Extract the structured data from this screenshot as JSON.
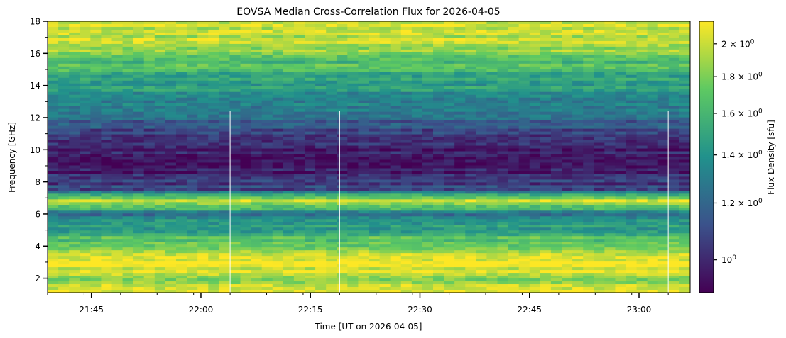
{
  "chart_data": {
    "type": "heatmap",
    "title": "EOVSA Median Cross-Correlation Flux for 2026-04-05",
    "xlabel": "Time [UT on 2026-04-05]",
    "ylabel": "Frequency [GHz]",
    "colorbar_label": "Flux Density [sfu]",
    "colormap": "viridis",
    "colormap_stops": [
      "#440154",
      "#3b528b",
      "#21918c",
      "#5ec962",
      "#fde725"
    ],
    "xlim": [
      "21:39",
      "23:07"
    ],
    "ylim": [
      1.1,
      18.0
    ],
    "x_ticks": [
      "21:45",
      "22:00",
      "22:15",
      "22:30",
      "22:45",
      "23:00"
    ],
    "y_ticks": [
      2,
      4,
      6,
      8,
      10,
      12,
      14,
      16,
      18
    ],
    "color_scale": "log",
    "color_range": [
      0.9,
      2.15
    ],
    "colorbar_ticks": [
      {
        "base": "2",
        "exp": "0",
        "value": 2.0
      },
      {
        "base": "1.8",
        "exp": "0",
        "value": 1.8
      },
      {
        "base": "1.6",
        "exp": "0",
        "value": 1.6
      },
      {
        "base": "1.4",
        "exp": "0",
        "value": 1.4
      },
      {
        "base": "1.2",
        "exp": "0",
        "value": 1.2
      },
      {
        "base": "",
        "exp": "0",
        "value": 1.0
      }
    ],
    "frequency_profile_sfu": [
      {
        "freq_ghz": 1.2,
        "flux": 2.0
      },
      {
        "freq_ghz": 2.0,
        "flux": 1.9
      },
      {
        "freq_ghz": 3.0,
        "flux": 2.1
      },
      {
        "freq_ghz": 4.0,
        "flux": 1.8
      },
      {
        "freq_ghz": 5.0,
        "flux": 1.5
      },
      {
        "freq_ghz": 6.0,
        "flux": 1.25
      },
      {
        "freq_ghz": 6.8,
        "flux": 2.1
      },
      {
        "freq_ghz": 7.5,
        "flux": 1.1
      },
      {
        "freq_ghz": 9.0,
        "flux": 0.95
      },
      {
        "freq_ghz": 10.5,
        "flux": 1.0
      },
      {
        "freq_ghz": 12.0,
        "flux": 1.2
      },
      {
        "freq_ghz": 13.5,
        "flux": 1.4
      },
      {
        "freq_ghz": 15.0,
        "flux": 1.6
      },
      {
        "freq_ghz": 16.5,
        "flux": 1.9
      },
      {
        "freq_ghz": 18.0,
        "flux": 2.1
      }
    ],
    "vertical_lines_time": [
      "22:04",
      "22:19",
      "23:04"
    ],
    "grid": false
  }
}
